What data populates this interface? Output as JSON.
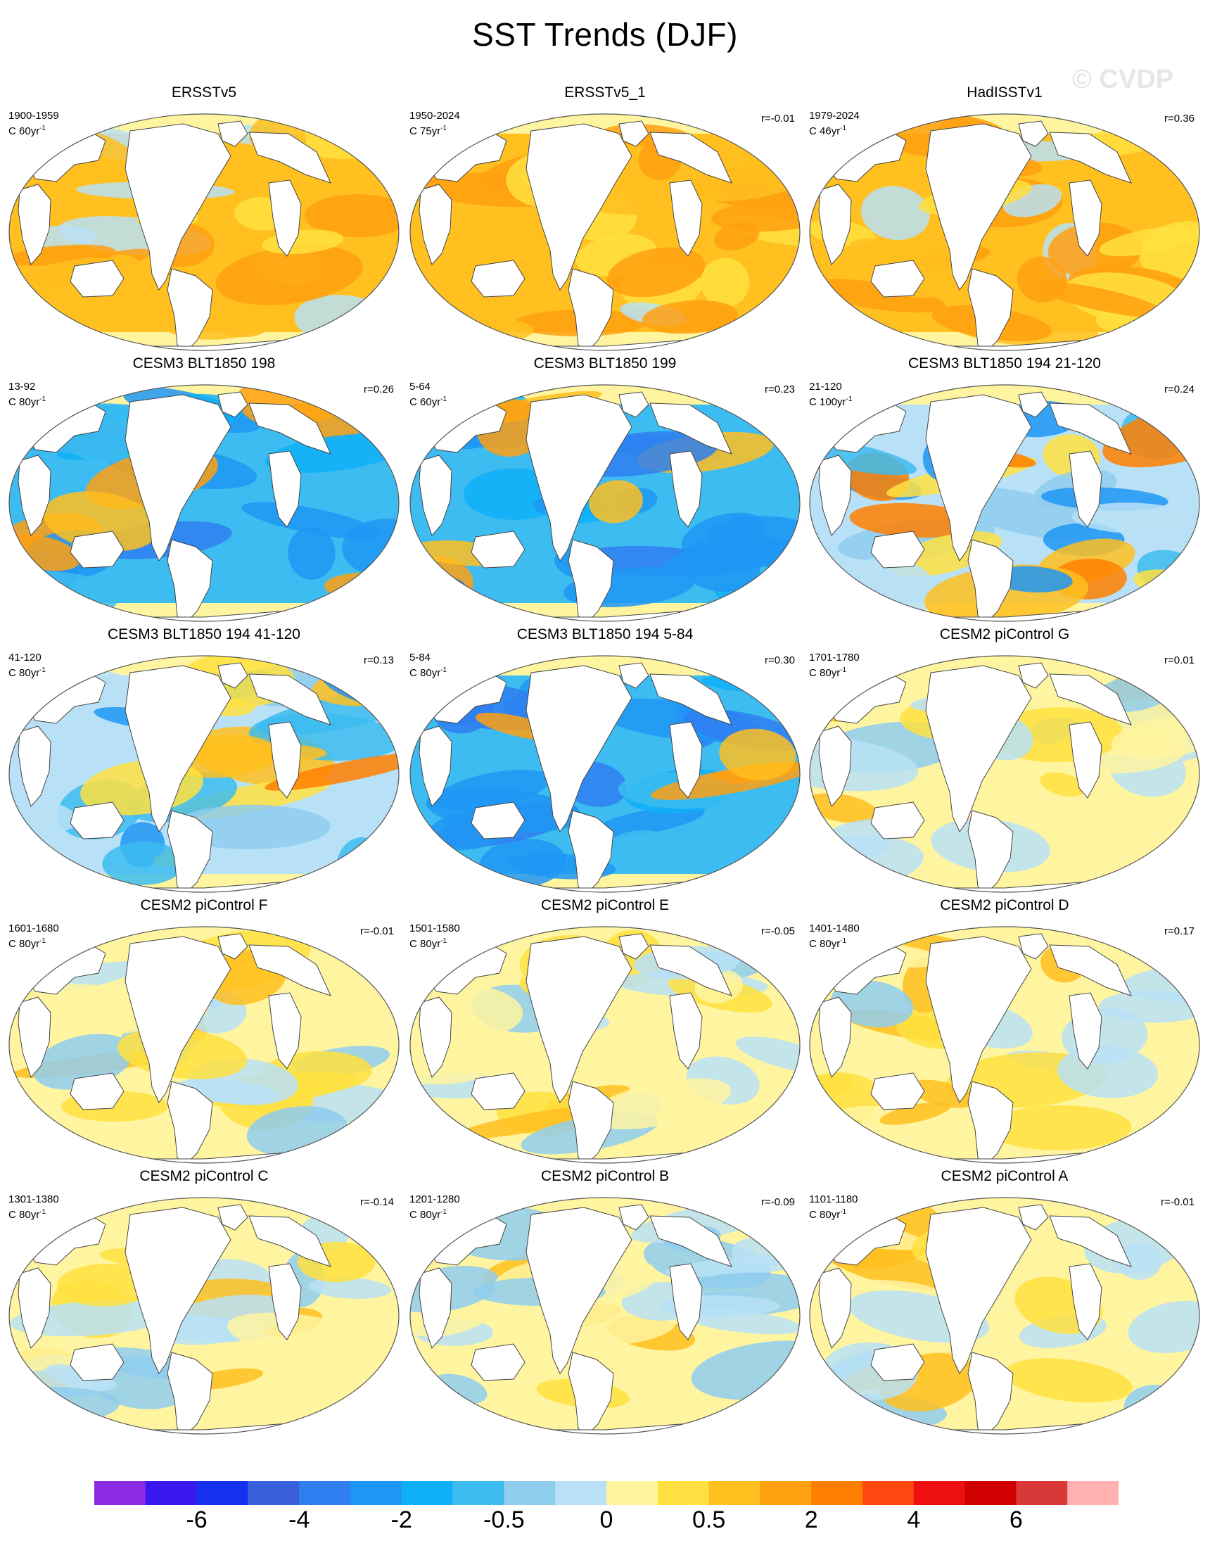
{
  "title": "SST Trends (DJF)",
  "watermark": "© CVDP",
  "units_prefix": "C ",
  "units_suffix": "yr",
  "units_exp": "-1",
  "chart_data": {
    "type": "heatmap",
    "title": "SST Trends (DJF)",
    "colorbar": {
      "labels": [
        "-6",
        "-4",
        "-2",
        "-0.5",
        "0",
        "0.5",
        "2",
        "4",
        "6"
      ],
      "colors": [
        "#8a2be2",
        "#3a18f0",
        "#1530ee",
        "#3a5fdc",
        "#2f7ff0",
        "#1e96f5",
        "#0fb0f8",
        "#3cbcf0",
        "#8fcdee",
        "#b8e0f6",
        "#fff5a0",
        "#ffe040",
        "#ffc020",
        "#ffa010",
        "#ff8000",
        "#ff4810",
        "#ee1010",
        "#d00000",
        "#d83838",
        "#ffb0b0"
      ]
    },
    "panels": [
      {
        "title": "ERSSTv5",
        "period": "1900-1959",
        "length": "60",
        "r": "",
        "dominant": "warm"
      },
      {
        "title": "ERSSTv5_1",
        "period": "1950-2024",
        "length": "75",
        "r": "r=-0.01",
        "dominant": "warm"
      },
      {
        "title": "HadISSTv1",
        "period": "1979-2024",
        "length": "46",
        "r": "r=0.36",
        "dominant": "warm"
      },
      {
        "title": "CESM3 BLT1850 198",
        "period": "13-92",
        "length": "80",
        "r": "r=0.26",
        "dominant": "cool"
      },
      {
        "title": "CESM3 BLT1850 199",
        "period": "5-64",
        "length": "60",
        "r": "r=0.23",
        "dominant": "cool"
      },
      {
        "title": "CESM3 BLT1850 194 21-120",
        "period": "21-120",
        "length": "100",
        "r": "r=0.24",
        "dominant": "mixed"
      },
      {
        "title": "CESM3 BLT1850 194 41-120",
        "period": "41-120",
        "length": "80",
        "r": "r=0.13",
        "dominant": "mixed"
      },
      {
        "title": "CESM3 BLT1850 194 5-84",
        "period": "5-84",
        "length": "80",
        "r": "r=0.30",
        "dominant": "cool"
      },
      {
        "title": "CESM2 piControl G",
        "period": "1701-1780",
        "length": "80",
        "r": "r=0.01",
        "dominant": "weak"
      },
      {
        "title": "CESM2 piControl F",
        "period": "1601-1680",
        "length": "80",
        "r": "r=-0.01",
        "dominant": "weak"
      },
      {
        "title": "CESM2 piControl E",
        "period": "1501-1580",
        "length": "80",
        "r": "r=-0.05",
        "dominant": "weak"
      },
      {
        "title": "CESM2 piControl D",
        "period": "1401-1480",
        "length": "80",
        "r": "r=0.17",
        "dominant": "weak"
      },
      {
        "title": "CESM2 piControl C",
        "period": "1301-1380",
        "length": "80",
        "r": "r=-0.14",
        "dominant": "weak"
      },
      {
        "title": "CESM2 piControl B",
        "period": "1201-1280",
        "length": "80",
        "r": "r=-0.09",
        "dominant": "weak"
      },
      {
        "title": "CESM2 piControl A",
        "period": "1101-1180",
        "length": "80",
        "r": "r=-0.01",
        "dominant": "weak"
      }
    ]
  }
}
